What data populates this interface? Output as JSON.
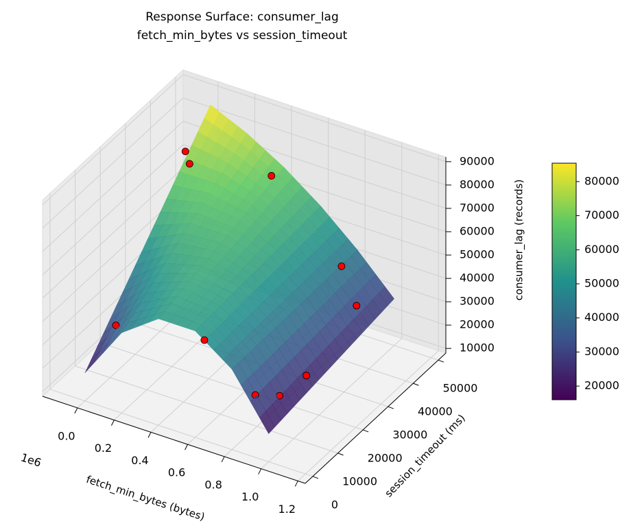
{
  "chart_data": {
    "type": "surface",
    "title": "Response Surface: consumer_lag",
    "subtitle": "fetch_min_bytes vs session_timeout",
    "x_label": "fetch_min_bytes (bytes)",
    "y_label": "session_timeout (ms)",
    "z_label": "consumer_lag (records)",
    "x_offset_label": "1e6",
    "xlim": [
      -190000,
      1240000
    ],
    "xticks": [
      {
        "value": 0,
        "label": "0.0"
      },
      {
        "value": 200000,
        "label": "0.2"
      },
      {
        "value": 400000,
        "label": "0.4"
      },
      {
        "value": 600000,
        "label": "0.6"
      },
      {
        "value": 800000,
        "label": "0.8"
      },
      {
        "value": 1000000,
        "label": "1.0"
      },
      {
        "value": 1200000,
        "label": "1.2"
      }
    ],
    "ylim": [
      -3000,
      53000
    ],
    "yticks": [
      0,
      10000,
      20000,
      30000,
      40000,
      50000
    ],
    "zlim": [
      8000,
      92000
    ],
    "zticks": [
      10000,
      20000,
      30000,
      40000,
      50000,
      60000,
      70000,
      80000,
      90000
    ],
    "clim": [
      16000,
      85400
    ],
    "cticks": [
      20000,
      30000,
      40000,
      50000,
      60000,
      70000,
      80000
    ],
    "colormap": "viridis",
    "grid": true,
    "surface": {
      "x": [
        0,
        200000,
        400000,
        600000,
        800000,
        1000000
      ],
      "y": [
        0,
        10000,
        20000,
        30000,
        40000,
        50000
      ],
      "z": [
        [
          20000,
          42400,
          53600,
          53600,
          42400,
          20000
        ],
        [
          33000,
          49500,
          56600,
          54300,
          42700,
          21600
        ],
        [
          46000,
          56600,
          59600,
          55100,
          42900,
          23200
        ],
        [
          59000,
          63700,
          62600,
          55800,
          43200,
          24800
        ],
        [
          72000,
          70800,
          65700,
          56500,
          43500,
          26400
        ],
        [
          85000,
          77900,
          68700,
          57300,
          43700,
          28000
        ]
      ]
    },
    "points": {
      "color": "red",
      "x": [
        100000,
        650000,
        900000,
        0,
        50000,
        400000,
        850000,
        1000000,
        1000000,
        950000
      ],
      "y": [
        5000,
        0,
        2000,
        40000,
        38000,
        45000,
        40000,
        35000,
        15000,
        8000
      ],
      "z": [
        38000,
        51000,
        32000,
        75000,
        73000,
        70000,
        48000,
        40000,
        30000,
        27000
      ]
    }
  }
}
